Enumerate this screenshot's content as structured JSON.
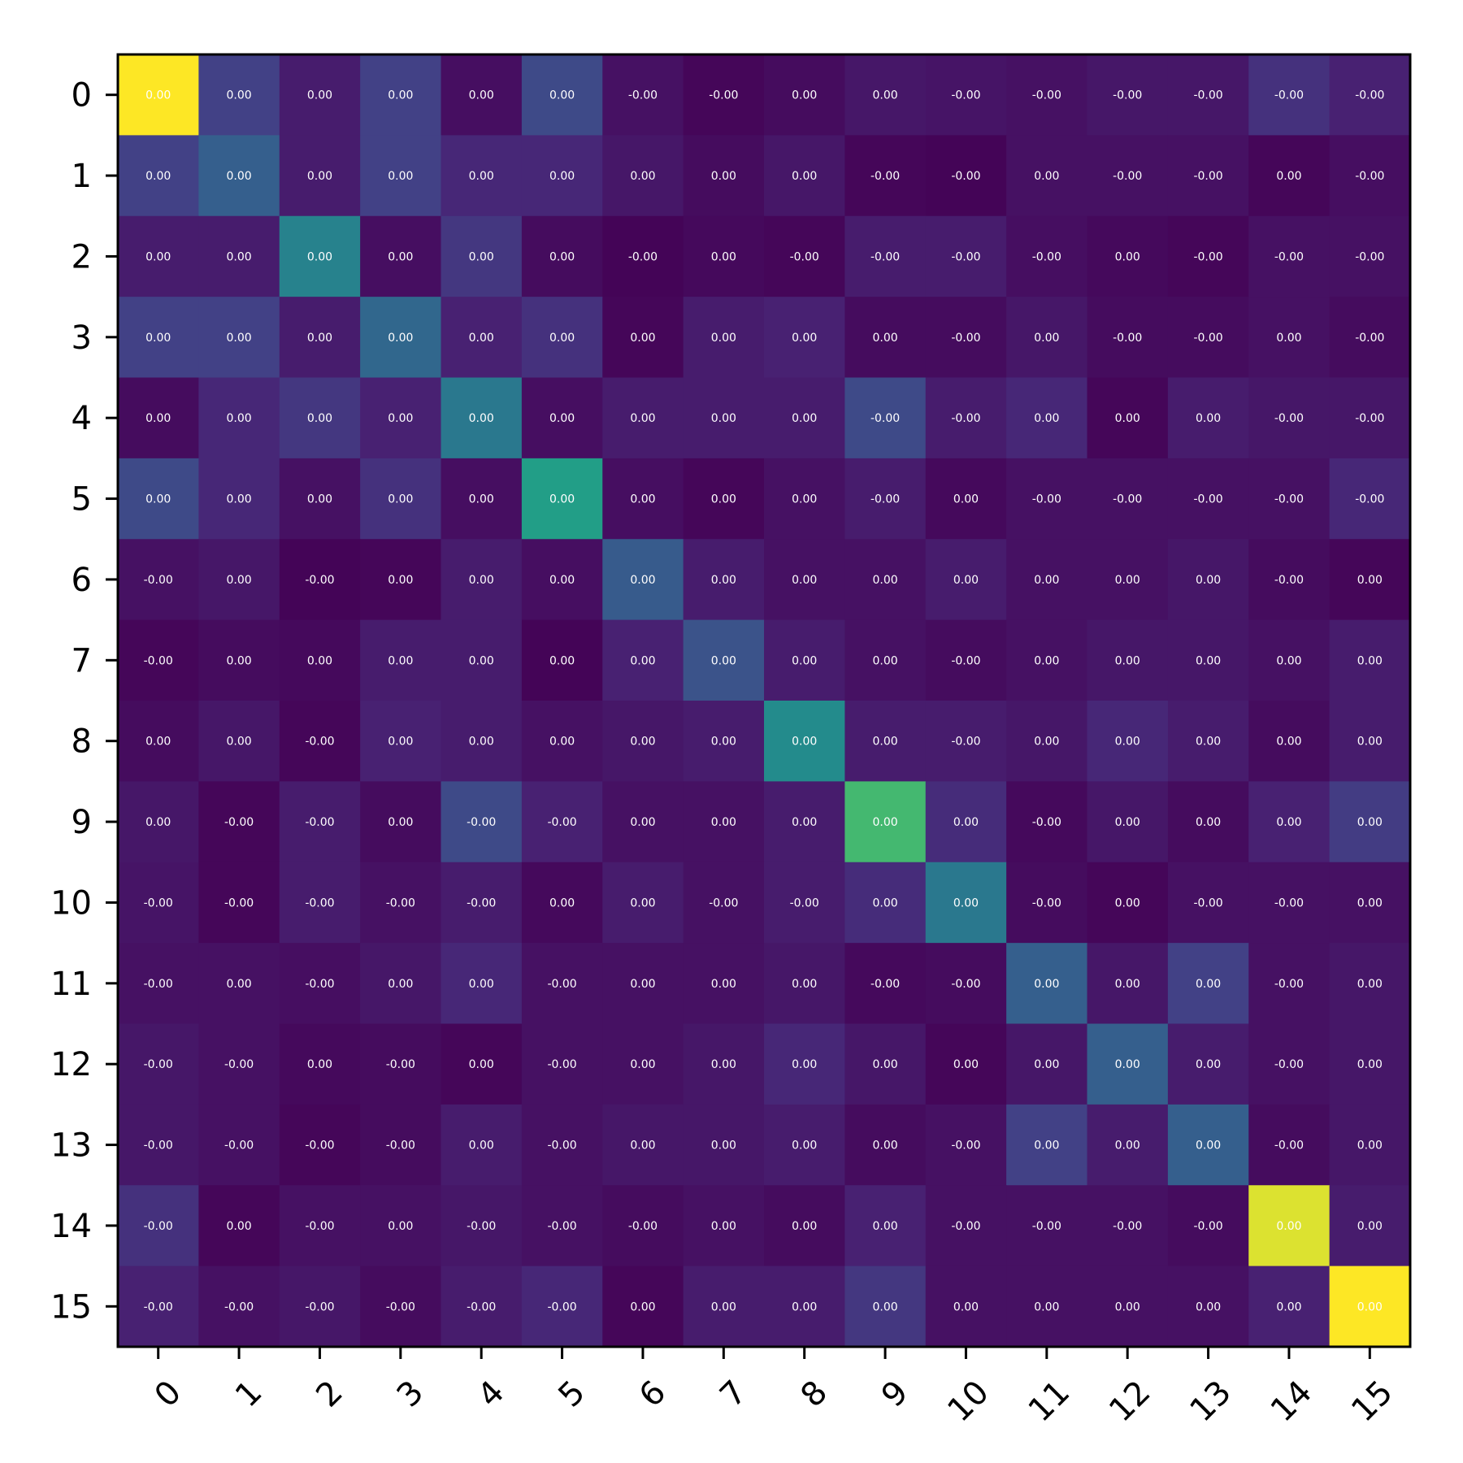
{
  "chart_data": {
    "type": "heatmap",
    "title": "",
    "xlabel": "",
    "ylabel": "",
    "colormap": "viridis",
    "x_categories": [
      "0",
      "1",
      "2",
      "3",
      "4",
      "5",
      "6",
      "7",
      "8",
      "9",
      "10",
      "11",
      "12",
      "13",
      "14",
      "15"
    ],
    "y_categories": [
      "0",
      "1",
      "2",
      "3",
      "4",
      "5",
      "6",
      "7",
      "8",
      "9",
      "10",
      "11",
      "12",
      "13",
      "14",
      "15"
    ],
    "value_range": [
      0,
      1
    ],
    "intensity": [
      [
        1.0,
        0.24,
        0.1,
        0.24,
        0.05,
        0.28,
        0.06,
        0.02,
        0.04,
        0.08,
        0.07,
        0.06,
        0.08,
        0.08,
        0.18,
        0.12
      ],
      [
        0.24,
        0.38,
        0.1,
        0.24,
        0.14,
        0.14,
        0.08,
        0.04,
        0.08,
        0.02,
        0.01,
        0.06,
        0.06,
        0.06,
        0.02,
        0.05
      ],
      [
        0.1,
        0.1,
        0.55,
        0.05,
        0.2,
        0.04,
        0.01,
        0.03,
        0.02,
        0.1,
        0.1,
        0.05,
        0.03,
        0.02,
        0.06,
        0.06
      ],
      [
        0.24,
        0.24,
        0.1,
        0.42,
        0.12,
        0.18,
        0.02,
        0.1,
        0.12,
        0.04,
        0.04,
        0.08,
        0.04,
        0.04,
        0.06,
        0.04
      ],
      [
        0.04,
        0.14,
        0.2,
        0.12,
        0.5,
        0.05,
        0.1,
        0.1,
        0.1,
        0.28,
        0.1,
        0.14,
        0.02,
        0.1,
        0.08,
        0.08
      ],
      [
        0.28,
        0.14,
        0.06,
        0.18,
        0.05,
        0.7,
        0.05,
        0.02,
        0.06,
        0.1,
        0.03,
        0.06,
        0.06,
        0.06,
        0.06,
        0.14
      ],
      [
        0.06,
        0.08,
        0.01,
        0.02,
        0.1,
        0.05,
        0.36,
        0.1,
        0.06,
        0.06,
        0.1,
        0.06,
        0.06,
        0.08,
        0.04,
        0.02
      ],
      [
        0.02,
        0.04,
        0.03,
        0.1,
        0.1,
        0.01,
        0.12,
        0.32,
        0.1,
        0.06,
        0.04,
        0.06,
        0.08,
        0.08,
        0.06,
        0.1
      ],
      [
        0.04,
        0.08,
        0.02,
        0.12,
        0.1,
        0.06,
        0.08,
        0.1,
        0.6,
        0.1,
        0.1,
        0.08,
        0.14,
        0.1,
        0.04,
        0.1
      ],
      [
        0.08,
        0.02,
        0.1,
        0.04,
        0.28,
        0.12,
        0.06,
        0.06,
        0.1,
        0.8,
        0.16,
        0.03,
        0.08,
        0.04,
        0.12,
        0.22
      ],
      [
        0.07,
        0.02,
        0.1,
        0.06,
        0.1,
        0.03,
        0.1,
        0.06,
        0.1,
        0.16,
        0.5,
        0.04,
        0.02,
        0.06,
        0.06,
        0.06
      ],
      [
        0.06,
        0.06,
        0.05,
        0.08,
        0.14,
        0.06,
        0.06,
        0.06,
        0.08,
        0.03,
        0.04,
        0.38,
        0.08,
        0.24,
        0.06,
        0.08
      ],
      [
        0.08,
        0.06,
        0.03,
        0.04,
        0.02,
        0.06,
        0.06,
        0.08,
        0.14,
        0.08,
        0.02,
        0.08,
        0.38,
        0.1,
        0.06,
        0.08
      ],
      [
        0.08,
        0.06,
        0.02,
        0.04,
        0.1,
        0.06,
        0.08,
        0.08,
        0.1,
        0.04,
        0.06,
        0.24,
        0.1,
        0.38,
        0.04,
        0.08
      ],
      [
        0.18,
        0.02,
        0.06,
        0.06,
        0.08,
        0.06,
        0.04,
        0.06,
        0.04,
        0.12,
        0.06,
        0.06,
        0.06,
        0.04,
        0.97,
        0.1
      ],
      [
        0.12,
        0.06,
        0.08,
        0.04,
        0.1,
        0.14,
        0.02,
        0.1,
        0.1,
        0.2,
        0.06,
        0.06,
        0.06,
        0.06,
        0.12,
        1.0
      ]
    ],
    "cell_labels": [
      [
        "0.00",
        "0.00",
        "0.00",
        "0.00",
        "0.00",
        "0.00",
        "-0.00",
        "-0.00",
        "0.00",
        "0.00",
        "-0.00",
        "-0.00",
        "-0.00",
        "-0.00",
        "-0.00",
        "-0.00"
      ],
      [
        "0.00",
        "0.00",
        "0.00",
        "0.00",
        "0.00",
        "0.00",
        "0.00",
        "0.00",
        "0.00",
        "-0.00",
        "-0.00",
        "0.00",
        "-0.00",
        "-0.00",
        "0.00",
        "-0.00"
      ],
      [
        "0.00",
        "0.00",
        "0.00",
        "0.00",
        "0.00",
        "0.00",
        "-0.00",
        "0.00",
        "-0.00",
        "-0.00",
        "-0.00",
        "-0.00",
        "0.00",
        "-0.00",
        "-0.00",
        "-0.00"
      ],
      [
        "0.00",
        "0.00",
        "0.00",
        "0.00",
        "0.00",
        "0.00",
        "0.00",
        "0.00",
        "0.00",
        "0.00",
        "-0.00",
        "0.00",
        "-0.00",
        "-0.00",
        "0.00",
        "-0.00"
      ],
      [
        "0.00",
        "0.00",
        "0.00",
        "0.00",
        "0.00",
        "0.00",
        "0.00",
        "0.00",
        "0.00",
        "-0.00",
        "-0.00",
        "0.00",
        "0.00",
        "0.00",
        "-0.00",
        "-0.00"
      ],
      [
        "0.00",
        "0.00",
        "0.00",
        "0.00",
        "0.00",
        "0.00",
        "0.00",
        "0.00",
        "0.00",
        "-0.00",
        "0.00",
        "-0.00",
        "-0.00",
        "-0.00",
        "-0.00",
        "-0.00"
      ],
      [
        "-0.00",
        "0.00",
        "-0.00",
        "0.00",
        "0.00",
        "0.00",
        "0.00",
        "0.00",
        "0.00",
        "0.00",
        "0.00",
        "0.00",
        "0.00",
        "0.00",
        "-0.00",
        "0.00"
      ],
      [
        "-0.00",
        "0.00",
        "0.00",
        "0.00",
        "0.00",
        "0.00",
        "0.00",
        "0.00",
        "0.00",
        "0.00",
        "-0.00",
        "0.00",
        "0.00",
        "0.00",
        "0.00",
        "0.00"
      ],
      [
        "0.00",
        "0.00",
        "-0.00",
        "0.00",
        "0.00",
        "0.00",
        "0.00",
        "0.00",
        "0.00",
        "0.00",
        "-0.00",
        "0.00",
        "0.00",
        "0.00",
        "0.00",
        "0.00"
      ],
      [
        "0.00",
        "-0.00",
        "-0.00",
        "0.00",
        "-0.00",
        "-0.00",
        "0.00",
        "0.00",
        "0.00",
        "0.00",
        "0.00",
        "-0.00",
        "0.00",
        "0.00",
        "0.00",
        "0.00"
      ],
      [
        "-0.00",
        "-0.00",
        "-0.00",
        "-0.00",
        "-0.00",
        "0.00",
        "0.00",
        "-0.00",
        "-0.00",
        "0.00",
        "0.00",
        "-0.00",
        "0.00",
        "-0.00",
        "-0.00",
        "0.00"
      ],
      [
        "-0.00",
        "0.00",
        "-0.00",
        "0.00",
        "0.00",
        "-0.00",
        "0.00",
        "0.00",
        "0.00",
        "-0.00",
        "-0.00",
        "0.00",
        "0.00",
        "0.00",
        "-0.00",
        "0.00"
      ],
      [
        "-0.00",
        "-0.00",
        "0.00",
        "-0.00",
        "0.00",
        "-0.00",
        "0.00",
        "0.00",
        "0.00",
        "0.00",
        "0.00",
        "0.00",
        "0.00",
        "0.00",
        "-0.00",
        "0.00"
      ],
      [
        "-0.00",
        "-0.00",
        "-0.00",
        "-0.00",
        "0.00",
        "-0.00",
        "0.00",
        "0.00",
        "0.00",
        "0.00",
        "-0.00",
        "0.00",
        "0.00",
        "0.00",
        "-0.00",
        "0.00"
      ],
      [
        "-0.00",
        "0.00",
        "-0.00",
        "0.00",
        "-0.00",
        "-0.00",
        "-0.00",
        "0.00",
        "0.00",
        "0.00",
        "-0.00",
        "-0.00",
        "-0.00",
        "-0.00",
        "0.00",
        "0.00"
      ],
      [
        "-0.00",
        "-0.00",
        "-0.00",
        "-0.00",
        "-0.00",
        "-0.00",
        "0.00",
        "0.00",
        "0.00",
        "0.00",
        "0.00",
        "0.00",
        "0.00",
        "0.00",
        "0.00",
        "0.00"
      ]
    ],
    "grid": false,
    "legend": "none",
    "colorbar": false
  }
}
